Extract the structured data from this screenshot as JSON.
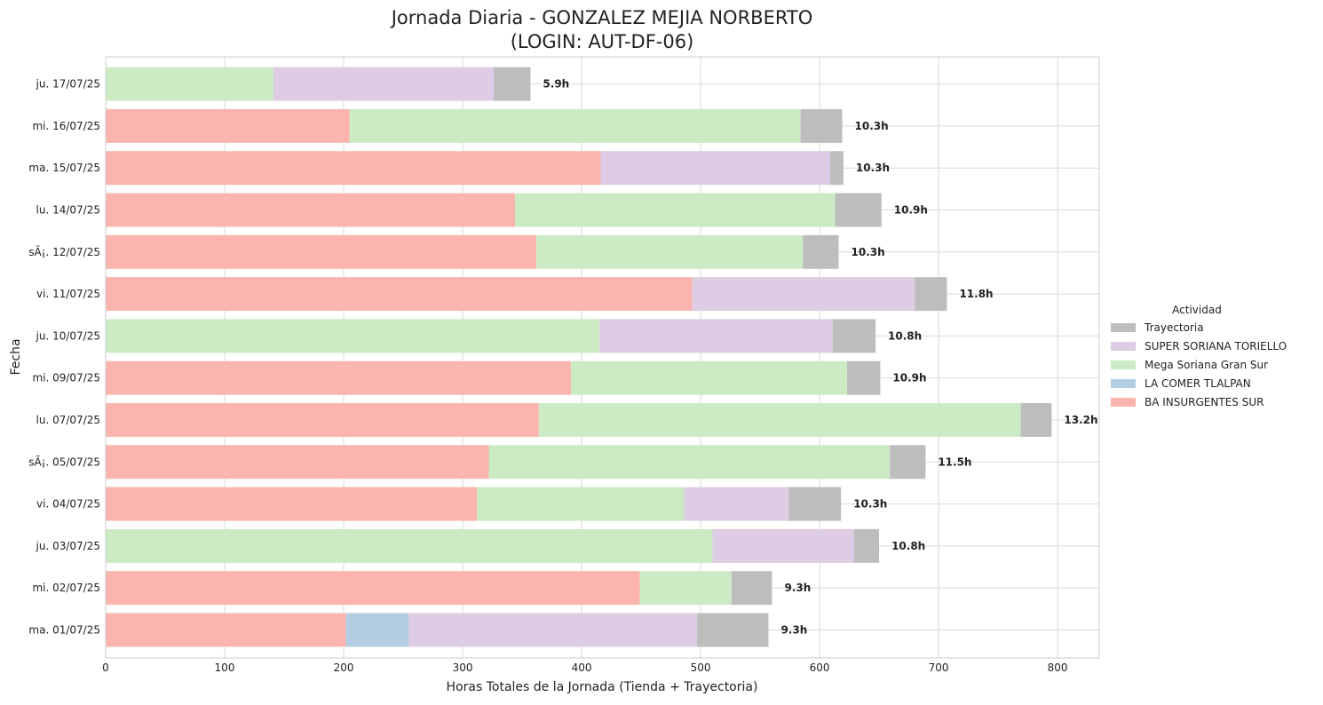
{
  "chart_data": {
    "type": "bar",
    "orientation": "horizontal",
    "stacked": true,
    "title": "Jornada Diaria - GONZALEZ MEJIA NORBERTO",
    "subtitle": "(LOGIN: AUT-DF-06)",
    "xlabel": "Horas Totales de la Jornada (Tienda + Trayectoria)",
    "ylabel": "Fecha",
    "xlim": [
      0,
      835
    ],
    "xticks": [
      0,
      100,
      200,
      300,
      400,
      500,
      600,
      700,
      800
    ],
    "grid": true,
    "legend": {
      "title": "Actividad",
      "position": "right"
    },
    "categories": [
      "ma. 01/07/25",
      "mi. 02/07/25",
      "ju. 03/07/25",
      "vi. 04/07/25",
      "sÃ¡. 05/07/25",
      "lu. 07/07/25",
      "mi. 09/07/25",
      "ju. 10/07/25",
      "vi. 11/07/25",
      "sÃ¡. 12/07/25",
      "lu. 14/07/25",
      "ma. 15/07/25",
      "mi. 16/07/25",
      "ju. 17/07/25"
    ],
    "series": [
      {
        "name": "BA INSURGENTES SUR",
        "color": "#fbb4ae",
        "values": [
          202,
          449,
          0,
          312,
          322,
          364,
          391,
          0,
          493,
          362,
          344,
          416,
          205,
          0
        ]
      },
      {
        "name": "LA COMER TLALPAN",
        "color": "#b3cde3",
        "values": [
          53,
          0,
          0,
          0,
          0,
          0,
          0,
          0,
          0,
          0,
          0,
          0,
          0,
          0
        ]
      },
      {
        "name": "Mega Soriana Gran Sur",
        "color": "#ccebc5",
        "values": [
          0,
          77,
          510,
          174,
          337,
          405,
          232,
          415,
          0,
          224,
          269,
          0,
          379,
          141
        ]
      },
      {
        "name": "SUPER SORIANA TORIELLO",
        "color": "#decbe4",
        "values": [
          242,
          0,
          119,
          88,
          0,
          0,
          0,
          196,
          187,
          0,
          0,
          193,
          0,
          185
        ]
      },
      {
        "name": "Trayectoria",
        "color": "#bdbdbd",
        "values": [
          60,
          34,
          21,
          44,
          30,
          26,
          28,
          36,
          27,
          30,
          39,
          11,
          35,
          31
        ]
      }
    ],
    "legend_order": [
      "Trayectoria",
      "SUPER SORIANA TORIELLO",
      "Mega Soriana Gran Sur",
      "LA COMER TLALPAN",
      "BA INSURGENTES SUR"
    ],
    "total_labels": [
      "9.3h",
      "9.3h",
      "10.8h",
      "10.3h",
      "11.5h",
      "13.2h",
      "10.9h",
      "10.8h",
      "11.8h",
      "10.3h",
      "10.9h",
      "10.3h",
      "10.3h",
      "5.9h"
    ]
  }
}
